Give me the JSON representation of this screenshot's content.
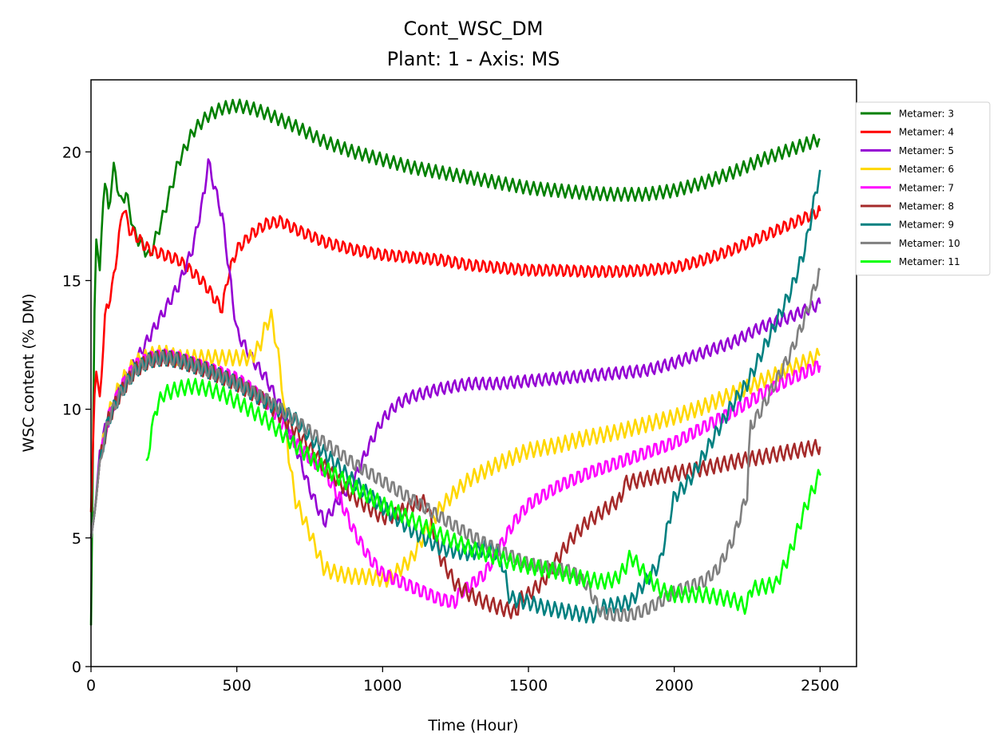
{
  "chart_data": {
    "type": "line",
    "title": "Cont_WSC_DM",
    "subtitle": "Plant: 1 - Axis: MS",
    "xlabel": "Time (Hour)",
    "ylabel": "WSC content (% DM)",
    "xlim": [
      0,
      2625
    ],
    "ylim": [
      0,
      22.8
    ],
    "xticks": [
      0,
      500,
      1000,
      1500,
      2000,
      2500
    ],
    "yticks": [
      0,
      5,
      10,
      15,
      20
    ],
    "xtick_labels": [
      "0",
      "500",
      "1000",
      "1500",
      "2000",
      "2500"
    ],
    "ytick_labels": [
      "0",
      "5",
      "10",
      "15",
      "20"
    ],
    "grid": false,
    "legend_position": "upper-right-outside",
    "series": [
      {
        "name": "Metamer: 3",
        "color": "#008000",
        "osc_amp": 0.25,
        "x": [
          0,
          15,
          30,
          45,
          60,
          80,
          100,
          120,
          150,
          180,
          200,
          250,
          300,
          350,
          400,
          450,
          500,
          550,
          600,
          700,
          800,
          900,
          1000,
          1100,
          1200,
          1300,
          1400,
          1500,
          1600,
          1700,
          1800,
          1900,
          2000,
          2100,
          2200,
          2300,
          2400,
          2500
        ],
        "y": [
          1.6,
          16.9,
          15.4,
          19.0,
          17.8,
          19.5,
          18.0,
          18.4,
          16.8,
          16.3,
          15.9,
          17.6,
          19.6,
          20.8,
          21.4,
          21.7,
          21.8,
          21.7,
          21.5,
          21.0,
          20.4,
          20.0,
          19.7,
          19.4,
          19.2,
          19.0,
          18.8,
          18.6,
          18.5,
          18.4,
          18.35,
          18.35,
          18.5,
          18.8,
          19.2,
          19.7,
          20.1,
          20.5
        ]
      },
      {
        "name": "Metamer: 4",
        "color": "#ff0000",
        "osc_amp": 0.25,
        "x": [
          0,
          15,
          30,
          50,
          70,
          100,
          110,
          130,
          150,
          180,
          200,
          250,
          300,
          340,
          380,
          400,
          430,
          450,
          470,
          500,
          550,
          600,
          650,
          700,
          800,
          900,
          1000,
          1100,
          1200,
          1300,
          1400,
          1500,
          1600,
          1700,
          1800,
          1900,
          2000,
          2100,
          2200,
          2300,
          2400,
          2500
        ],
        "y": [
          6.0,
          11.7,
          10.5,
          13.8,
          14.5,
          17.0,
          18.0,
          17.0,
          16.8,
          16.4,
          16.2,
          16.0,
          15.8,
          15.4,
          15.0,
          14.7,
          14.2,
          13.9,
          15.2,
          16.2,
          16.8,
          17.2,
          17.3,
          17.0,
          16.5,
          16.2,
          16.0,
          15.9,
          15.8,
          15.6,
          15.5,
          15.4,
          15.4,
          15.35,
          15.35,
          15.4,
          15.5,
          15.8,
          16.2,
          16.7,
          17.2,
          17.7
        ]
      },
      {
        "name": "Metamer: 5",
        "color": "#9400d3",
        "osc_amp": 0.25,
        "x": [
          0,
          15,
          30,
          50,
          70,
          100,
          150,
          200,
          250,
          300,
          350,
          390,
          400,
          420,
          450,
          500,
          550,
          600,
          650,
          700,
          750,
          800,
          850,
          900,
          950,
          1000,
          1050,
          1100,
          1200,
          1300,
          1400,
          1500,
          1600,
          1700,
          1800,
          1900,
          2000,
          2100,
          2200,
          2300,
          2400,
          2500
        ],
        "y": [
          5.0,
          6.2,
          8.4,
          9.3,
          9.8,
          10.8,
          11.8,
          12.8,
          13.8,
          14.8,
          16.3,
          18.5,
          19.7,
          18.8,
          17.5,
          13.0,
          12.0,
          11.2,
          10.1,
          8.6,
          6.9,
          5.6,
          6.5,
          7.2,
          8.5,
          9.6,
          10.2,
          10.5,
          10.8,
          11.0,
          11.0,
          11.1,
          11.2,
          11.3,
          11.4,
          11.5,
          11.8,
          12.2,
          12.6,
          13.2,
          13.6,
          14.1
        ]
      },
      {
        "name": "Metamer: 6",
        "color": "#ffd700",
        "osc_amp": 0.3,
        "x": [
          0,
          15,
          30,
          60,
          100,
          150,
          200,
          250,
          300,
          350,
          400,
          450,
          500,
          550,
          580,
          600,
          620,
          650,
          680,
          700,
          750,
          800,
          850,
          900,
          950,
          1000,
          1020,
          1100,
          1150,
          1200,
          1250,
          1300,
          1400,
          1500,
          1600,
          1700,
          1800,
          1900,
          2000,
          2100,
          2200,
          2300,
          2400,
          2500
        ],
        "y": [
          5.0,
          6.2,
          8.0,
          9.8,
          11.0,
          11.8,
          12.1,
          12.2,
          12.0,
          12.0,
          12.0,
          12.0,
          12.0,
          12.0,
          12.5,
          13.3,
          13.6,
          11.5,
          8.0,
          6.5,
          5.2,
          3.8,
          3.6,
          3.5,
          3.5,
          3.4,
          3.4,
          4.2,
          5.3,
          6.2,
          6.8,
          7.3,
          7.9,
          8.4,
          8.6,
          8.9,
          9.1,
          9.4,
          9.7,
          10.1,
          10.6,
          11.1,
          11.6,
          12.1
        ]
      },
      {
        "name": "Metamer: 7",
        "color": "#ff00ff",
        "osc_amp": 0.3,
        "x": [
          0,
          15,
          30,
          60,
          100,
          150,
          200,
          250,
          300,
          350,
          400,
          500,
          550,
          600,
          650,
          700,
          750,
          800,
          850,
          900,
          950,
          1000,
          1100,
          1200,
          1250,
          1260,
          1350,
          1400,
          1450,
          1500,
          1600,
          1700,
          1800,
          1900,
          2000,
          2100,
          2200,
          2300,
          2400,
          2500
        ],
        "y": [
          5.0,
          6.2,
          8.0,
          9.7,
          10.8,
          11.7,
          12.0,
          12.1,
          12.0,
          11.8,
          11.6,
          11.2,
          10.8,
          10.3,
          9.5,
          8.7,
          8.1,
          7.6,
          6.6,
          5.3,
          4.3,
          3.6,
          3.1,
          2.6,
          2.5,
          2.8,
          3.6,
          4.6,
          5.6,
          6.3,
          7.0,
          7.5,
          7.9,
          8.3,
          8.7,
          9.3,
          9.9,
          10.6,
          11.2,
          11.7
        ]
      },
      {
        "name": "Metamer: 8",
        "color": "#a52a2a",
        "osc_amp": 0.3,
        "x": [
          0,
          15,
          30,
          60,
          100,
          150,
          200,
          250,
          300,
          350,
          400,
          500,
          600,
          700,
          800,
          900,
          1000,
          1050,
          1100,
          1150,
          1200,
          1250,
          1300,
          1350,
          1400,
          1460,
          1470,
          1500,
          1550,
          1600,
          1650,
          1700,
          1750,
          1800,
          1820,
          1825,
          1900,
          2000,
          2100,
          2200,
          2300,
          2400,
          2500
        ],
        "y": [
          5.0,
          6.2,
          8.0,
          9.6,
          10.6,
          11.5,
          11.9,
          12.0,
          11.9,
          11.7,
          11.5,
          11.0,
          10.3,
          9.2,
          7.8,
          6.6,
          5.8,
          5.9,
          6.3,
          6.4,
          4.2,
          3.2,
          2.8,
          2.5,
          2.3,
          2.1,
          2.6,
          2.8,
          3.3,
          4.2,
          5.0,
          5.6,
          6.0,
          6.4,
          6.5,
          7.1,
          7.3,
          7.5,
          7.7,
          7.95,
          8.15,
          8.35,
          8.55
        ]
      },
      {
        "name": "Metamer: 9",
        "color": "#008080",
        "osc_amp": 0.3,
        "x": [
          0,
          15,
          30,
          60,
          100,
          150,
          200,
          250,
          300,
          350,
          400,
          500,
          600,
          700,
          800,
          900,
          1000,
          1100,
          1200,
          1300,
          1350,
          1400,
          1420,
          1430,
          1450,
          1500,
          1550,
          1600,
          1650,
          1700,
          1730,
          1750,
          1800,
          1850,
          1900,
          1950,
          2000,
          2050,
          2100,
          2150,
          2200,
          2250,
          2300,
          2350,
          2400,
          2450,
          2500
        ],
        "y": [
          5.0,
          6.2,
          8.0,
          9.6,
          10.6,
          11.5,
          11.9,
          12.0,
          11.9,
          11.7,
          11.5,
          11.0,
          10.3,
          9.6,
          8.3,
          7.2,
          6.2,
          5.3,
          4.6,
          4.4,
          4.6,
          4.4,
          3.6,
          2.8,
          2.6,
          2.5,
          2.3,
          2.2,
          2.1,
          2.0,
          2.0,
          2.3,
          2.4,
          2.5,
          3.3,
          4.0,
          6.6,
          7.2,
          8.2,
          9.2,
          10.2,
          11.0,
          12.2,
          13.4,
          14.6,
          16.3,
          19.3
        ]
      },
      {
        "name": "Metamer: 10",
        "color": "#808080",
        "osc_amp": 0.3,
        "x": [
          0,
          15,
          30,
          60,
          100,
          150,
          200,
          250,
          300,
          350,
          400,
          500,
          600,
          700,
          800,
          900,
          1000,
          1100,
          1200,
          1300,
          1400,
          1500,
          1600,
          1650,
          1700,
          1730,
          1750,
          1800,
          1850,
          1900,
          1950,
          2000,
          2050,
          2100,
          2150,
          2200,
          2250,
          2260,
          2300,
          2350,
          2400,
          2450,
          2500
        ],
        "y": [
          5.0,
          6.2,
          8.0,
          9.6,
          10.6,
          11.5,
          11.9,
          12.0,
          11.9,
          11.7,
          11.5,
          11.0,
          10.4,
          9.6,
          8.7,
          7.9,
          7.2,
          6.5,
          5.8,
          5.1,
          4.5,
          4.0,
          3.8,
          3.7,
          3.2,
          2.5,
          2.1,
          2.0,
          2.0,
          2.2,
          2.5,
          2.9,
          3.1,
          3.3,
          3.8,
          4.9,
          6.7,
          9.3,
          10.0,
          11.1,
          12.2,
          13.6,
          15.4
        ]
      },
      {
        "name": "Metamer: 11",
        "color": "#00ff00",
        "osc_amp": 0.3,
        "x": [
          190,
          200,
          210,
          230,
          250,
          300,
          350,
          400,
          450,
          500,
          600,
          700,
          800,
          900,
          1000,
          1100,
          1200,
          1300,
          1400,
          1500,
          1600,
          1650,
          1700,
          1750,
          1800,
          1830,
          1850,
          1900,
          1950,
          2000,
          2100,
          2200,
          2250,
          2260,
          2300,
          2350,
          2400,
          2450,
          2500
        ],
        "y": [
          8.0,
          8.2,
          9.6,
          10.2,
          10.6,
          10.8,
          10.9,
          10.8,
          10.6,
          10.3,
          9.6,
          8.6,
          7.7,
          7.0,
          6.3,
          5.7,
          5.1,
          4.6,
          4.2,
          3.9,
          3.7,
          3.5,
          3.4,
          3.3,
          3.4,
          3.8,
          4.3,
          3.6,
          3.0,
          2.8,
          2.8,
          2.6,
          2.3,
          3.0,
          3.1,
          3.2,
          4.5,
          6.2,
          7.5
        ]
      }
    ]
  }
}
